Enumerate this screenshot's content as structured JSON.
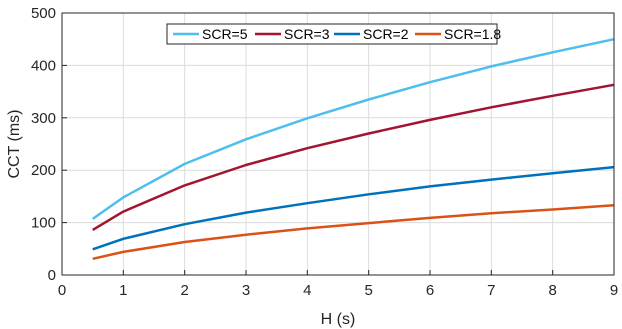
{
  "chart_data": {
    "type": "line",
    "title": "",
    "xlabel": "H (s)",
    "ylabel": "CCT (ms)",
    "xlim": [
      0,
      9
    ],
    "ylim": [
      0,
      500
    ],
    "xticks": [
      "0",
      "1",
      "2",
      "3",
      "4",
      "5",
      "6",
      "7",
      "8",
      "9"
    ],
    "yticks": [
      "0",
      "100",
      "200",
      "300",
      "400",
      "500"
    ],
    "grid": true,
    "legend_position": "top-center",
    "series": [
      {
        "name": "SCR=5",
        "color": "#4dbeee",
        "x": [
          0.5,
          1,
          2,
          3,
          4,
          5,
          6,
          7,
          8,
          9
        ],
        "y": [
          107,
          148,
          212,
          259,
          299,
          335,
          368,
          398,
          425,
          450
        ]
      },
      {
        "name": "SCR=3",
        "color": "#a2142f",
        "x": [
          0.5,
          1,
          2,
          3,
          4,
          5,
          6,
          7,
          8,
          9
        ],
        "y": [
          86,
          121,
          171,
          210,
          242,
          270,
          296,
          320,
          342,
          363
        ]
      },
      {
        "name": "SCR=2",
        "color": "#0072bd",
        "x": [
          0.5,
          1,
          2,
          3,
          4,
          5,
          6,
          7,
          8,
          9
        ],
        "y": [
          49,
          69,
          97,
          119,
          137,
          154,
          169,
          182,
          194,
          206
        ]
      },
      {
        "name": "SCR=1.8",
        "color": "#d95319",
        "x": [
          0.5,
          1,
          2,
          3,
          4,
          5,
          6,
          7,
          8,
          9
        ],
        "y": [
          31,
          44,
          63,
          77,
          89,
          99,
          109,
          118,
          125,
          133
        ]
      }
    ]
  }
}
